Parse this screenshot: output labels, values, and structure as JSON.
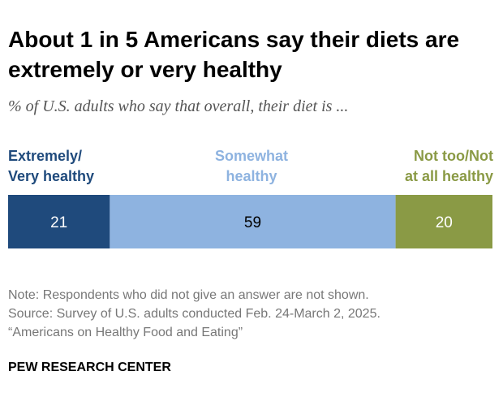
{
  "header": {
    "title": "About 1 in 5 Americans say their diets are extremely or very healthy",
    "subtitle": "% of U.S. adults who say that overall, their diet is ..."
  },
  "chart_data": {
    "type": "bar",
    "orientation": "horizontal-stacked",
    "title": "About 1 in 5 Americans say their diets are extremely or very healthy",
    "subtitle": "% of U.S. adults who say that overall, their diet is ...",
    "categories": [
      "Extremely/ Very healthy",
      "Somewhat healthy",
      "Not too/Not at all healthy"
    ],
    "series": [
      {
        "name": "Extremely/ Very healthy",
        "label_lines": [
          "Extremely/",
          "Very healthy"
        ],
        "value": 21,
        "color": "#1f4a7c",
        "text_color": "#ffffff"
      },
      {
        "name": "Somewhat healthy",
        "label_lines": [
          "Somewhat",
          "healthy"
        ],
        "value": 59,
        "color": "#8eb3e0",
        "text_color": "#000000"
      },
      {
        "name": "Not too/Not at all healthy",
        "label_lines": [
          "Not too/Not",
          "at all healthy"
        ],
        "value": 20,
        "color": "#8a9a45",
        "text_color": "#ffffff"
      }
    ],
    "label_colors": [
      "#1f4a7c",
      "#8eb3e0",
      "#8a9a45"
    ],
    "xlim": [
      0,
      100
    ],
    "xlabel": "",
    "ylabel": ""
  },
  "notes": {
    "note": "Note: Respondents who did not give an answer are not shown.",
    "source": "Source: Survey of U.S. adults conducted Feb. 24-March 2, 2025.",
    "report": "“Americans on Healthy Food and Eating”"
  },
  "branding": {
    "org": "PEW RESEARCH CENTER"
  }
}
